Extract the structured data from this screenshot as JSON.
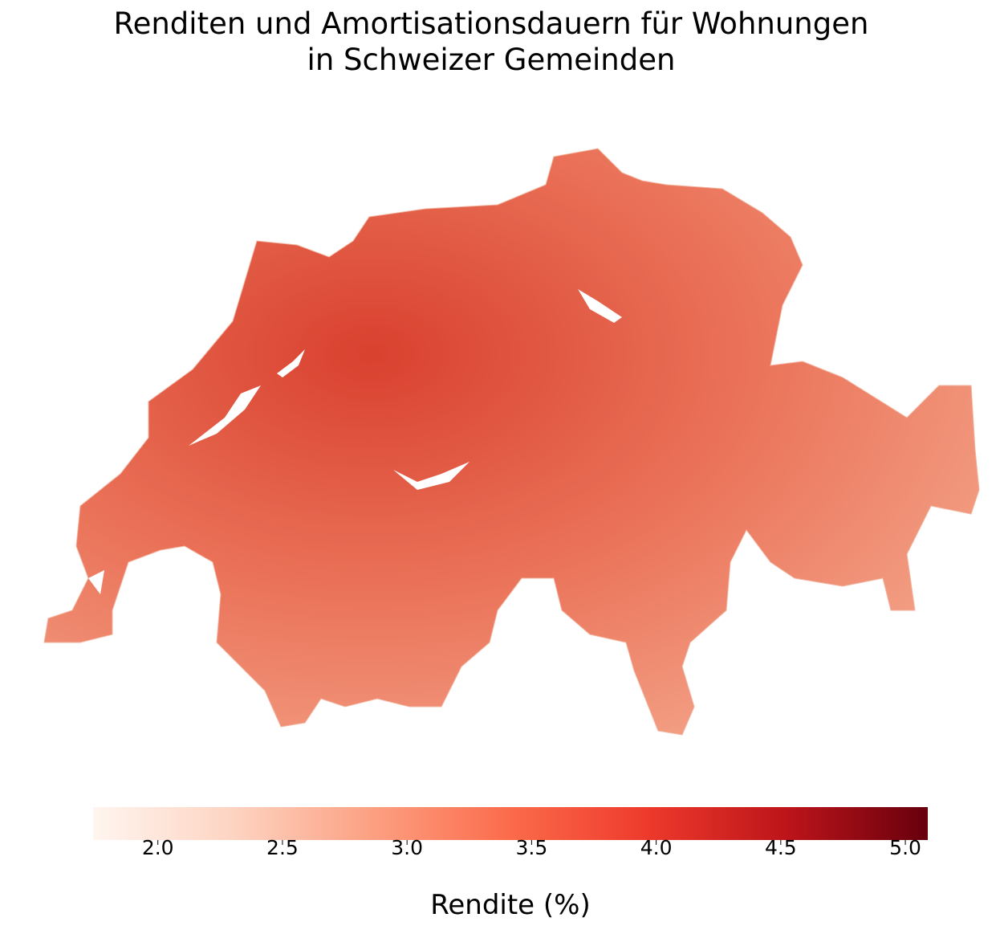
{
  "chart_data": {
    "type": "choropleth",
    "title": "Renditen und Amortisationsdauern für Wohnungen\nin Schweizer Gemeinden",
    "colorbar": {
      "label": "Rendite (%)",
      "lim": [
        1.74,
        5.09
      ],
      "ticks": [
        {
          "value": 2.0,
          "label": "2.0"
        },
        {
          "value": 2.5,
          "label": "2.5"
        },
        {
          "value": 3.0,
          "label": "3.0"
        },
        {
          "value": 3.5,
          "label": "3.5"
        },
        {
          "value": 4.0,
          "label": "4.0"
        },
        {
          "value": 4.5,
          "label": "4.5"
        },
        {
          "value": 5.0,
          "label": "5.0"
        }
      ],
      "colors": [
        "#fff5f0",
        "#fdd4c2",
        "#fca082",
        "#fb6b4b",
        "#ed392b",
        "#bc141a",
        "#67000d"
      ]
    }
  }
}
